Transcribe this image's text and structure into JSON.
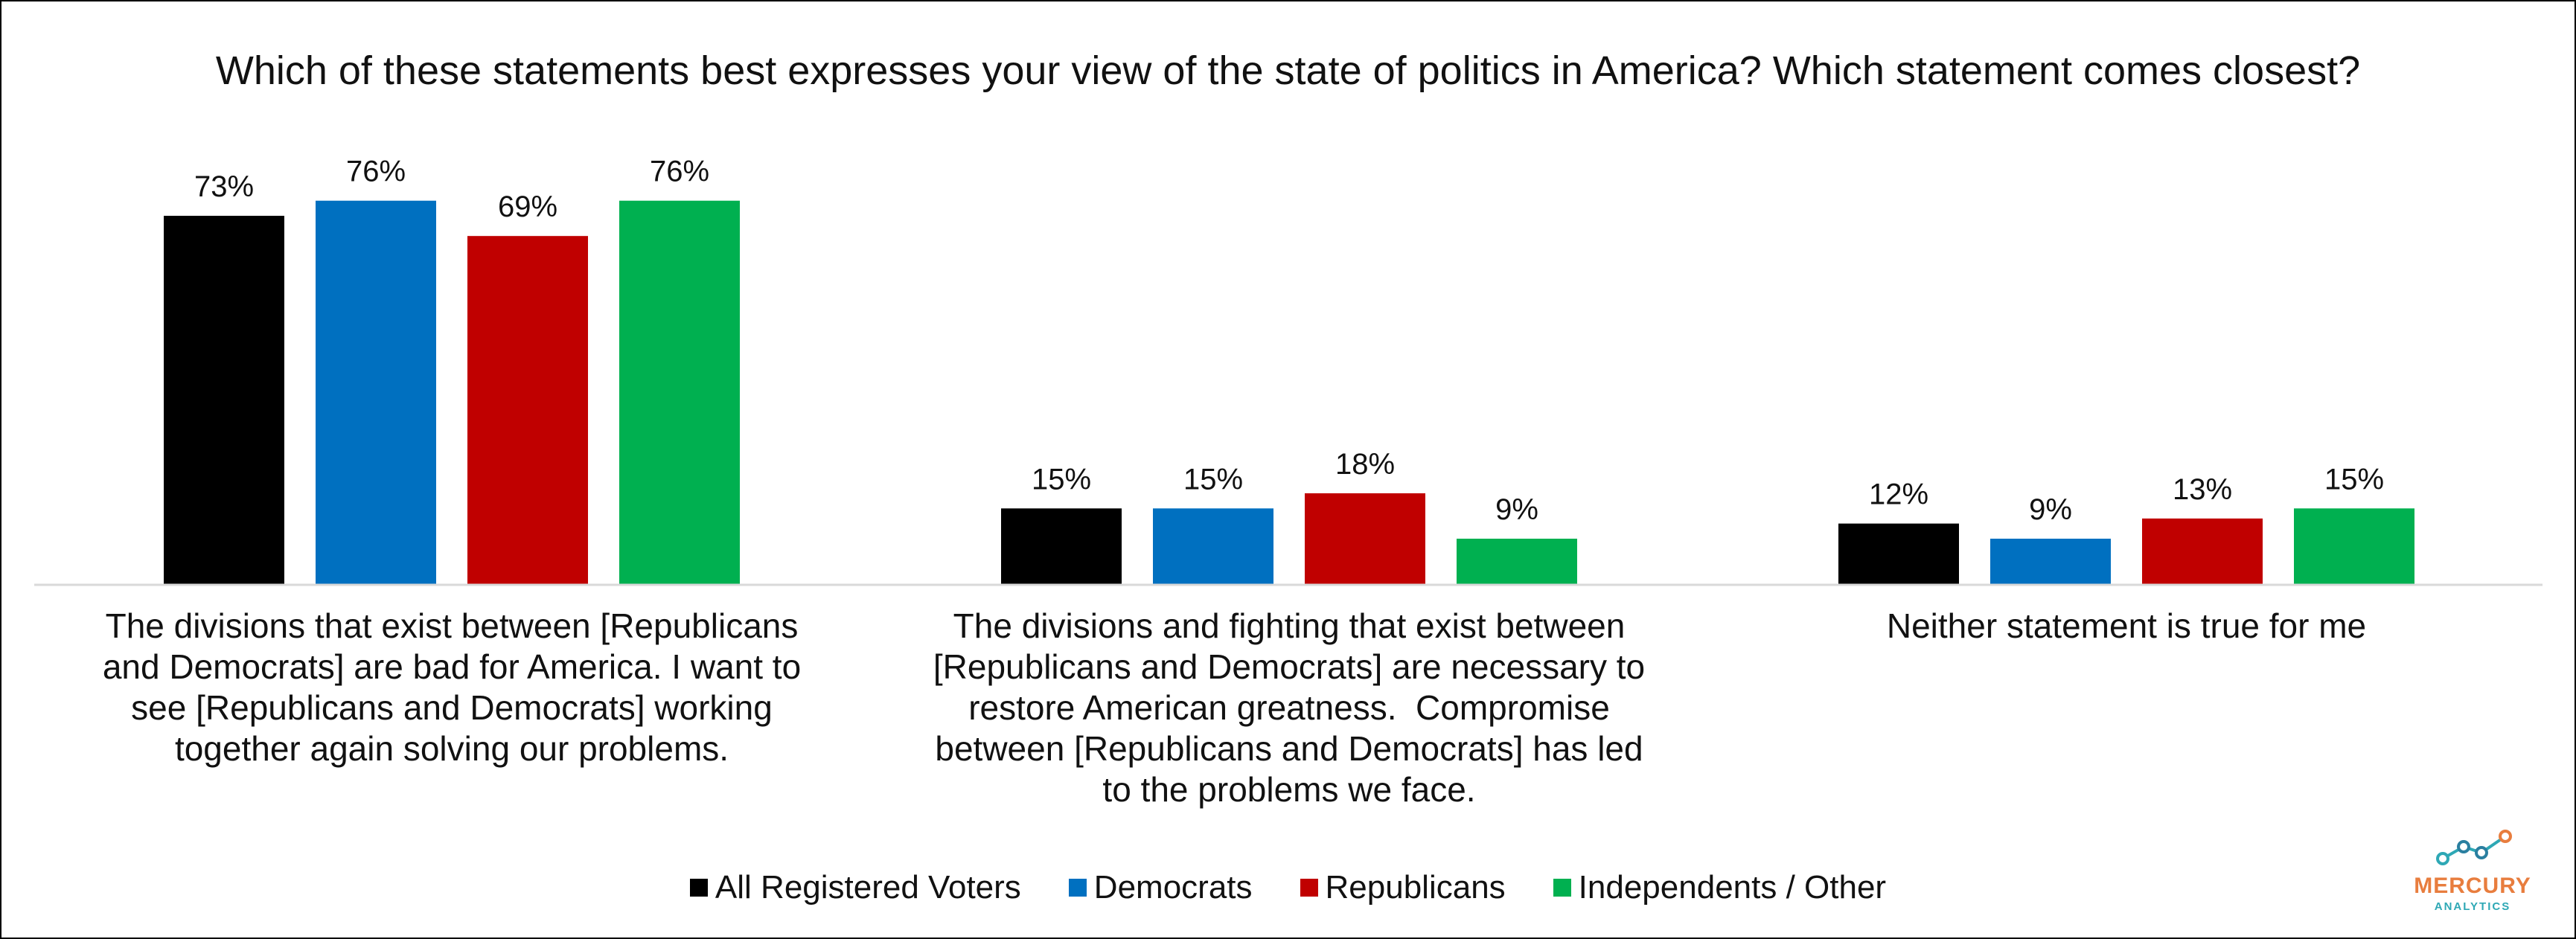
{
  "chart_data": {
    "type": "bar",
    "title": "Which of these statements best expresses your view of the state of politics in America? Which statement comes closest?",
    "categories": [
      "The divisions that exist between [Republicans and Democrats] are bad for America. I want to see [Republicans and Democrats] working together again solving our problems.",
      "The divisions and fighting that exist between [Republicans and Democrats] are necessary to restore American greatness.  Compromise between [Republicans and Democrats] has led to the problems we face.",
      "Neither statement is true for me"
    ],
    "category_lines": [
      [
        "The divisions that exist between [Republicans",
        "and Democrats] are bad for America. I want to",
        "see [Republicans and Democrats] working",
        "together again solving our problems."
      ],
      [
        "The divisions and fighting that exist between",
        "[Republicans and Democrats] are necessary to",
        "restore American greatness.  Compromise",
        "between [Republicans and Democrats] has led",
        "to the problems we face."
      ],
      [
        "Neither statement is true for me"
      ]
    ],
    "series": [
      {
        "name": "All Registered Voters",
        "color": "#000000",
        "values": [
          73,
          15,
          12
        ]
      },
      {
        "name": "Democrats",
        "color": "#0070c0",
        "values": [
          76,
          15,
          9
        ]
      },
      {
        "name": "Republicans",
        "color": "#c00000",
        "values": [
          69,
          18,
          13
        ]
      },
      {
        "name": "Independents / Other",
        "color": "#00b050",
        "values": [
          76,
          9,
          15
        ]
      }
    ],
    "value_suffix": "%",
    "ylim": [
      0,
      100
    ],
    "xlabel": "",
    "ylabel": "",
    "grid": false,
    "legend_position": "bottom"
  },
  "logo": {
    "word": "MERCURY",
    "sub": "ANALYTICS",
    "colors": {
      "word": "#e87d3e",
      "sub": "#2ea8b5"
    }
  }
}
